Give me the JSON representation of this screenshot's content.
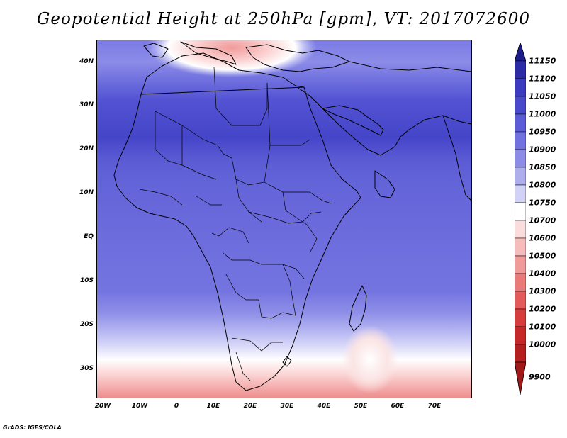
{
  "title": "Geopotential Height at 250hPa [gpm], VT: 2017072600",
  "credit": "GrADS: IGES/COLA",
  "map": {
    "variable": "Geopotential Height",
    "level": "250hPa",
    "units": "gpm",
    "valid_time": "2017072600",
    "lon_labels": [
      "20W",
      "10W",
      "0",
      "10E",
      "20E",
      "30E",
      "40E",
      "50E",
      "60E",
      "70E"
    ],
    "lat_labels": [
      "40N",
      "30N",
      "20N",
      "10N",
      "EQ",
      "10S",
      "20S",
      "30S"
    ]
  },
  "colorbar": {
    "levels": [
      "11150",
      "11100",
      "11050",
      "11000",
      "10950",
      "10900",
      "10850",
      "10800",
      "10750",
      "10700",
      "10600",
      "10500",
      "10400",
      "10300",
      "10200",
      "10100",
      "10000",
      "9900"
    ],
    "colors": [
      "#1c1c8a",
      "#2b2ba6",
      "#3b3bbf",
      "#4949cc",
      "#5c5cd6",
      "#7171e0",
      "#8c8ce6",
      "#aeaeef",
      "#d2d2f7",
      "#ffffff",
      "#fbdcdc",
      "#f6bcbc",
      "#f19a9a",
      "#ea7a7a",
      "#e35a5a",
      "#d63c3c",
      "#c62828",
      "#b51e1e"
    ]
  }
}
